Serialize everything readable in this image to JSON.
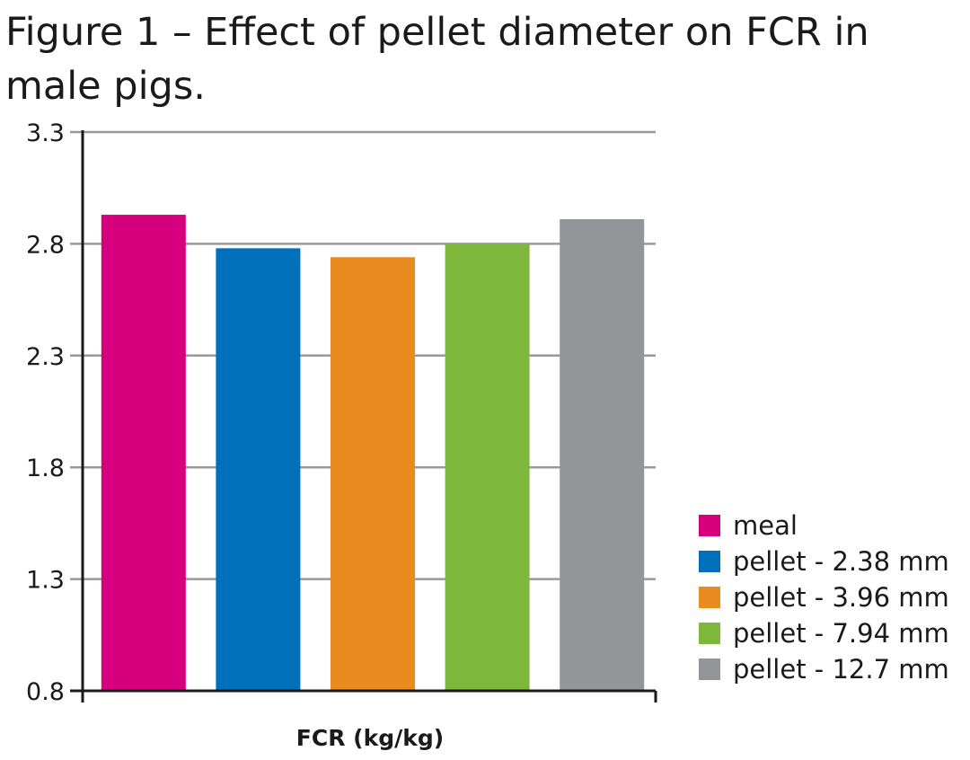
{
  "chart_data": {
    "type": "bar",
    "title": "Figure 1 – Effect of pellet diameter on FCR in male pigs.",
    "xlabel": "FCR (kg/kg)",
    "ylabel": "",
    "ylim": [
      0.8,
      3.3
    ],
    "yticks": [
      "0.8",
      "1.3",
      "1.8",
      "2.3",
      "2.8",
      "3.3"
    ],
    "grid": true,
    "legend_position": "right",
    "series": [
      {
        "name": "meal",
        "value": 2.93,
        "color": "#d6007e"
      },
      {
        "name": "pellet - 2.38 mm",
        "value": 2.78,
        "color": "#0070bb"
      },
      {
        "name": "pellet - 3.96 mm",
        "value": 2.74,
        "color": "#e98b1e"
      },
      {
        "name": "pellet - 7.94 mm",
        "value": 2.8,
        "color": "#7db83a"
      },
      {
        "name": "pellet - 12.7 mm",
        "value": 2.91,
        "color": "#939598"
      }
    ]
  }
}
